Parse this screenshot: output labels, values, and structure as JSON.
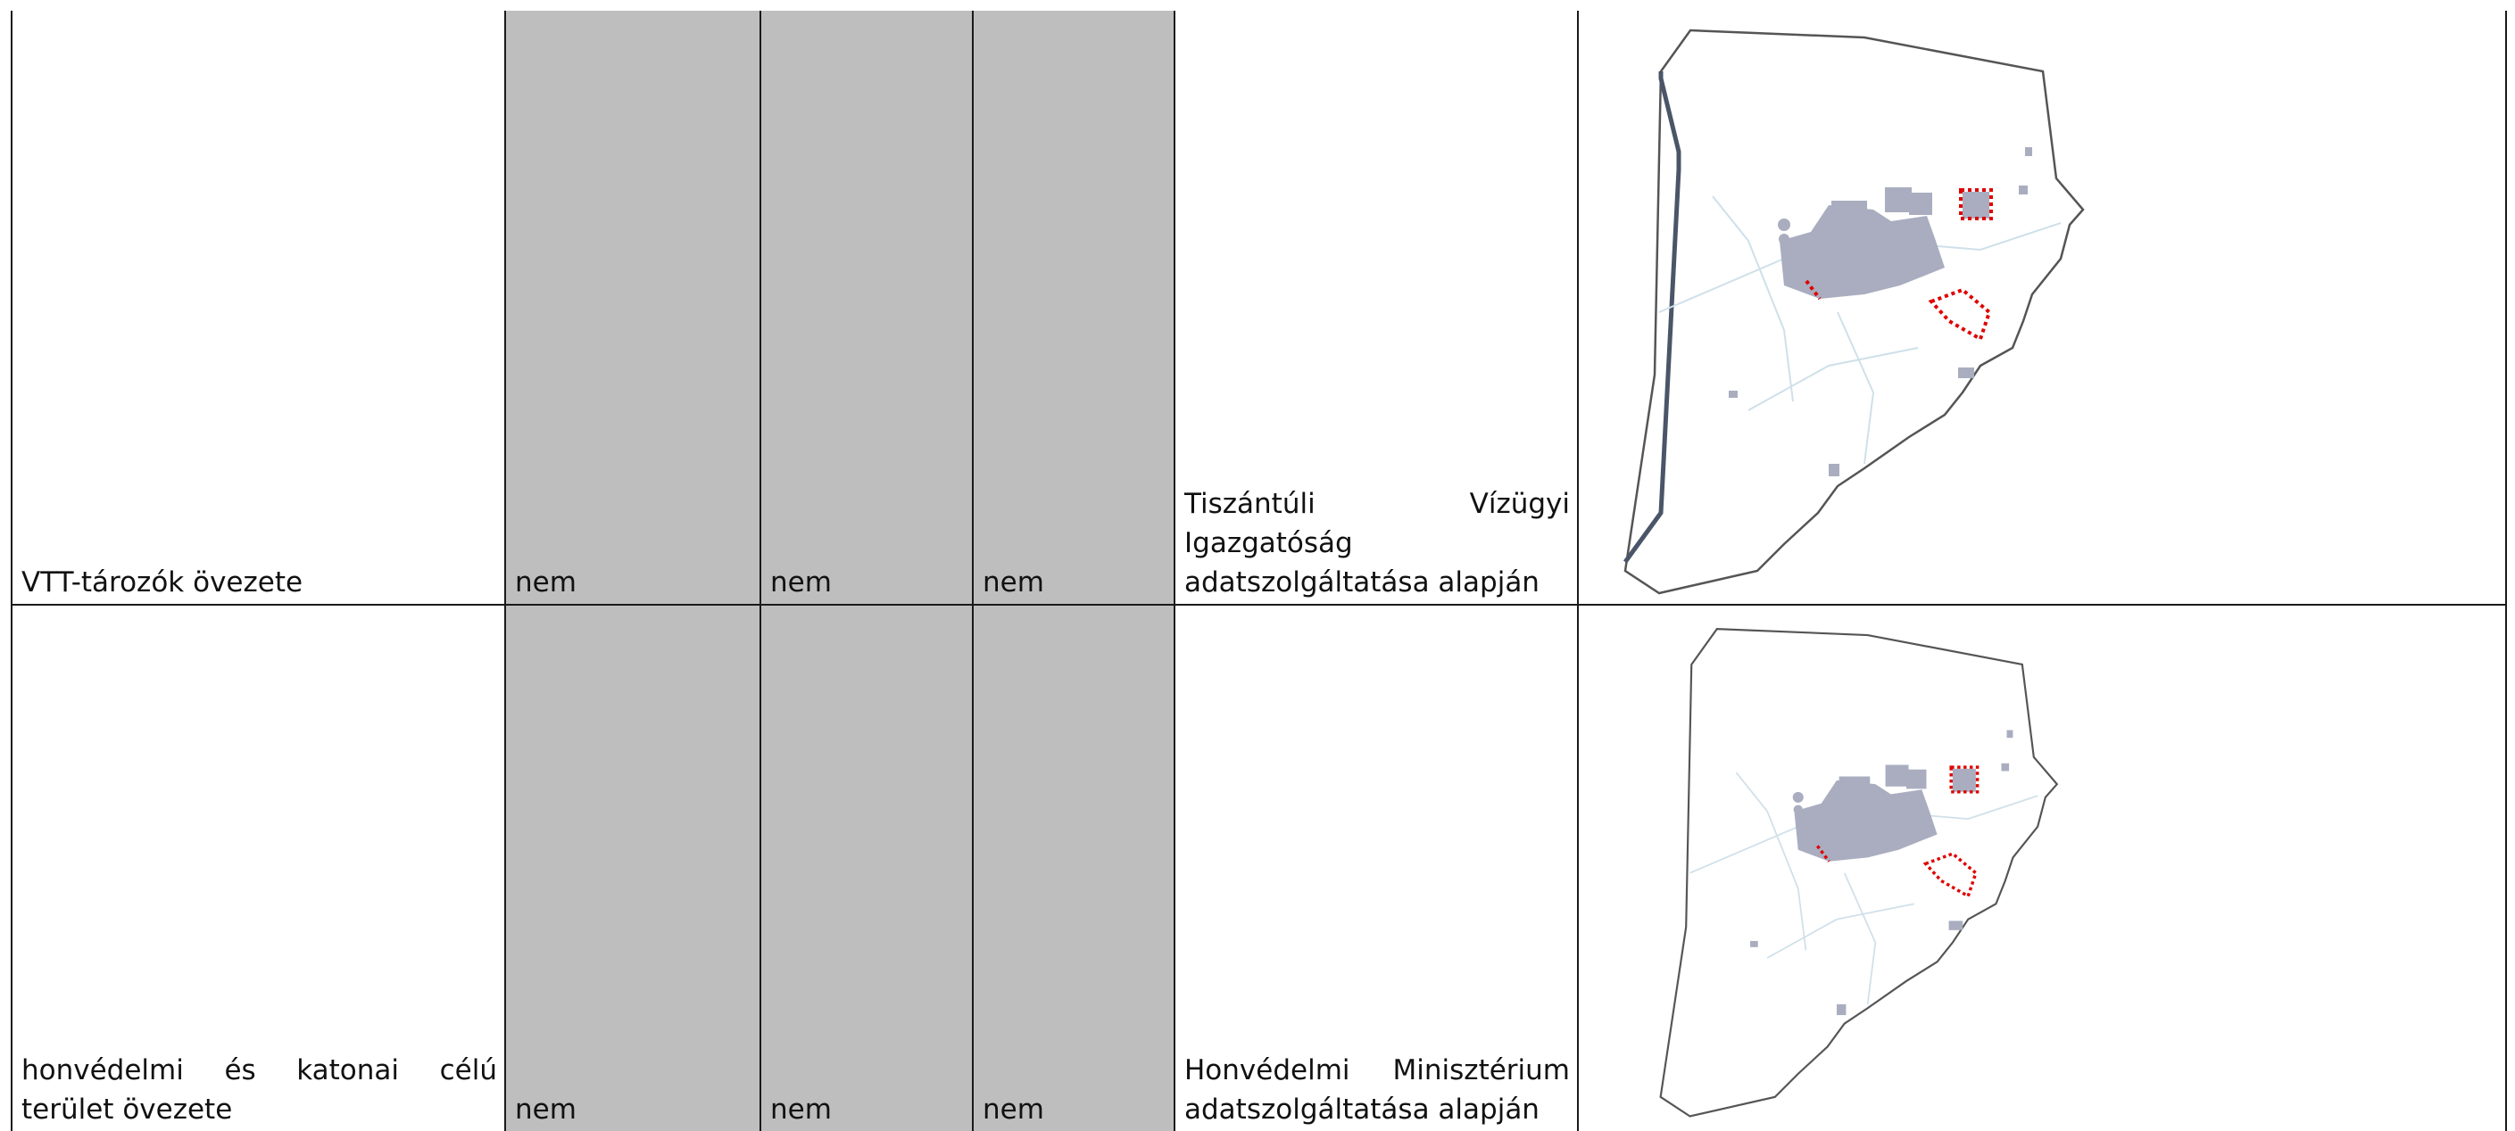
{
  "rows": [
    {
      "name": "VTT-tározók övezete",
      "col_a": "nem",
      "col_b": "nem",
      "col_c": "nem",
      "source": "Tiszántúli Vízügyi Igazgatóság adatszolgáltatása alapján",
      "map_icon": "settlement-map-with-highlighted-zones"
    },
    {
      "name": "honvédelmi és katonai célú terület övezete",
      "col_a": "nem",
      "col_b": "nem",
      "col_c": "nem",
      "source": "Honvédelmi Minisztérium adatszolgáltatása alapján",
      "map_icon": "settlement-map-with-highlighted-zones"
    }
  ],
  "colors": {
    "shaded_cell": "#bebebe",
    "map_outline": "#555555",
    "map_built_area": "#a9adbf",
    "map_water": "#cfe0ea",
    "map_highlight": "#e00000",
    "map_border_thick": "#4a5568"
  }
}
